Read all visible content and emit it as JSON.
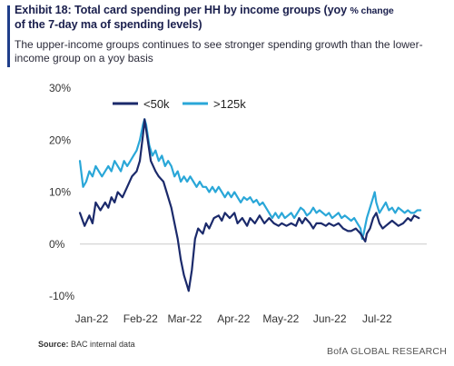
{
  "header": {
    "title_main": "Exhibit 18: Total card spending per HH by income groups (yoy ",
    "title_small": "% change",
    "title_line2": "of the 7-day  ma of spending levels)",
    "subtitle": "The upper-income groups continues to see stronger spending growth than the lower-income group on a yoy basis"
  },
  "footer": {
    "source_label": "Source:",
    "source_text": "BAC internal data",
    "brand": "BofA GLOBAL RESEARCH"
  },
  "colors": {
    "low_income": "#1b2a6b",
    "high_income": "#2aa7d8",
    "zero_line": "#c9c9c9"
  },
  "chart_data": {
    "type": "line",
    "title": "Exhibit 18: Total card spending per HH by income groups (yoy % change of the 7-day  ma of spending levels)",
    "xlabel": "",
    "ylabel": "",
    "ylim": [
      -10,
      30
    ],
    "yticks": [
      {
        "value": -10,
        "label": "-10%"
      },
      {
        "value": 0,
        "label": "0%"
      },
      {
        "value": 10,
        "label": "10%"
      },
      {
        "value": 20,
        "label": "20%"
      },
      {
        "value": 30,
        "label": "30%"
      }
    ],
    "xlim": [
      0,
      220
    ],
    "xticks": [
      {
        "value": 0,
        "label": "Jan-22"
      },
      {
        "value": 31,
        "label": "Feb-22"
      },
      {
        "value": 59,
        "label": "Mar-22"
      },
      {
        "value": 90,
        "label": "Apr-22"
      },
      {
        "value": 120,
        "label": "May-22"
      },
      {
        "value": 151,
        "label": "Jun-22"
      },
      {
        "value": 181,
        "label": "Jul-22"
      }
    ],
    "grid": false,
    "legend_position": "top-left",
    "series": [
      {
        "name": "<50k",
        "color": "#1b2a6b",
        "points": [
          [
            0,
            6
          ],
          [
            3,
            3.5
          ],
          [
            6,
            5.5
          ],
          [
            8,
            4
          ],
          [
            10,
            8
          ],
          [
            13,
            6.5
          ],
          [
            16,
            8
          ],
          [
            18,
            7
          ],
          [
            20,
            9
          ],
          [
            22,
            8
          ],
          [
            24,
            10
          ],
          [
            27,
            9
          ],
          [
            30,
            11
          ],
          [
            33,
            13
          ],
          [
            36,
            14
          ],
          [
            38,
            16
          ],
          [
            40,
            21
          ],
          [
            41,
            24
          ],
          [
            43,
            20
          ],
          [
            45,
            16
          ],
          [
            48,
            14
          ],
          [
            50,
            13
          ],
          [
            53,
            12
          ],
          [
            55,
            10
          ],
          [
            58,
            7
          ],
          [
            60,
            4
          ],
          [
            62,
            1
          ],
          [
            64,
            -3
          ],
          [
            66,
            -6
          ],
          [
            68,
            -8
          ],
          [
            69,
            -9
          ],
          [
            71,
            -5
          ],
          [
            73,
            1
          ],
          [
            75,
            3
          ],
          [
            78,
            2
          ],
          [
            80,
            4
          ],
          [
            82,
            3
          ],
          [
            85,
            5
          ],
          [
            88,
            5.5
          ],
          [
            90,
            4.5
          ],
          [
            92,
            6
          ],
          [
            95,
            5
          ],
          [
            98,
            6
          ],
          [
            100,
            4
          ],
          [
            103,
            5
          ],
          [
            106,
            3.5
          ],
          [
            108,
            5
          ],
          [
            111,
            4
          ],
          [
            114,
            5.5
          ],
          [
            117,
            4
          ],
          [
            120,
            5
          ],
          [
            123,
            4
          ],
          [
            126,
            3.5
          ],
          [
            128,
            4
          ],
          [
            131,
            3.5
          ],
          [
            134,
            4
          ],
          [
            137,
            3.5
          ],
          [
            139,
            5
          ],
          [
            141,
            4
          ],
          [
            143,
            5
          ],
          [
            146,
            4
          ],
          [
            148,
            3
          ],
          [
            150,
            4
          ],
          [
            153,
            4
          ],
          [
            156,
            3.5
          ],
          [
            158,
            4
          ],
          [
            161,
            3.5
          ],
          [
            164,
            4
          ],
          [
            167,
            3
          ],
          [
            170,
            2.5
          ],
          [
            172,
            2.5
          ],
          [
            175,
            3
          ],
          [
            178,
            2
          ],
          [
            180,
            1
          ],
          [
            181,
            0.5
          ],
          [
            182,
            2
          ],
          [
            184,
            3
          ],
          [
            186,
            5
          ],
          [
            188,
            6
          ],
          [
            190,
            4
          ],
          [
            192,
            3
          ],
          [
            194,
            3.5
          ],
          [
            196,
            4
          ],
          [
            198,
            4.5
          ],
          [
            200,
            4
          ],
          [
            202,
            3.5
          ],
          [
            205,
            4
          ],
          [
            208,
            5
          ],
          [
            210,
            4.5
          ],
          [
            212,
            5.5
          ],
          [
            215,
            5
          ]
        ]
      },
      {
        "name": ">125k",
        "color": "#2aa7d8",
        "points": [
          [
            0,
            16
          ],
          [
            2,
            11
          ],
          [
            4,
            12
          ],
          [
            6,
            14
          ],
          [
            8,
            13
          ],
          [
            10,
            15
          ],
          [
            12,
            14
          ],
          [
            14,
            13
          ],
          [
            16,
            14
          ],
          [
            18,
            15
          ],
          [
            20,
            14
          ],
          [
            22,
            16
          ],
          [
            24,
            15
          ],
          [
            26,
            14
          ],
          [
            28,
            16
          ],
          [
            30,
            15
          ],
          [
            32,
            16
          ],
          [
            34,
            17
          ],
          [
            36,
            18
          ],
          [
            38,
            20
          ],
          [
            40,
            23
          ],
          [
            41,
            24
          ],
          [
            42,
            23
          ],
          [
            44,
            19
          ],
          [
            46,
            17
          ],
          [
            48,
            18
          ],
          [
            50,
            16
          ],
          [
            52,
            17
          ],
          [
            54,
            15
          ],
          [
            56,
            16
          ],
          [
            58,
            15
          ],
          [
            60,
            13
          ],
          [
            62,
            14
          ],
          [
            64,
            12
          ],
          [
            66,
            13
          ],
          [
            68,
            12
          ],
          [
            70,
            13
          ],
          [
            72,
            12
          ],
          [
            74,
            11
          ],
          [
            76,
            12
          ],
          [
            78,
            11
          ],
          [
            80,
            11
          ],
          [
            82,
            10
          ],
          [
            84,
            11
          ],
          [
            86,
            10
          ],
          [
            88,
            11
          ],
          [
            90,
            10
          ],
          [
            92,
            9
          ],
          [
            94,
            10
          ],
          [
            96,
            9
          ],
          [
            98,
            10
          ],
          [
            100,
            9
          ],
          [
            102,
            8
          ],
          [
            104,
            9
          ],
          [
            106,
            8.5
          ],
          [
            108,
            9
          ],
          [
            110,
            8
          ],
          [
            112,
            8.5
          ],
          [
            114,
            7.5
          ],
          [
            116,
            8
          ],
          [
            118,
            7
          ],
          [
            120,
            6
          ],
          [
            122,
            5
          ],
          [
            124,
            6
          ],
          [
            126,
            5
          ],
          [
            128,
            6
          ],
          [
            130,
            5
          ],
          [
            132,
            5.5
          ],
          [
            134,
            6
          ],
          [
            136,
            5
          ],
          [
            138,
            6
          ],
          [
            140,
            7
          ],
          [
            142,
            6.5
          ],
          [
            144,
            5.5
          ],
          [
            146,
            6
          ],
          [
            148,
            7
          ],
          [
            150,
            6
          ],
          [
            152,
            6.5
          ],
          [
            154,
            6
          ],
          [
            156,
            5.5
          ],
          [
            158,
            6
          ],
          [
            160,
            5
          ],
          [
            162,
            5.5
          ],
          [
            164,
            6
          ],
          [
            166,
            5
          ],
          [
            168,
            5.5
          ],
          [
            170,
            5
          ],
          [
            172,
            4.5
          ],
          [
            174,
            5
          ],
          [
            176,
            4
          ],
          [
            178,
            3
          ],
          [
            179,
            1
          ],
          [
            180,
            2
          ],
          [
            182,
            5
          ],
          [
            184,
            7
          ],
          [
            186,
            9
          ],
          [
            187,
            10
          ],
          [
            188,
            8
          ],
          [
            190,
            6
          ],
          [
            192,
            7
          ],
          [
            194,
            8
          ],
          [
            196,
            6.5
          ],
          [
            198,
            7
          ],
          [
            200,
            6
          ],
          [
            202,
            7
          ],
          [
            204,
            6.5
          ],
          [
            206,
            6
          ],
          [
            208,
            6.5
          ],
          [
            210,
            6
          ],
          [
            212,
            6
          ],
          [
            214,
            6.5
          ],
          [
            216,
            6.5
          ]
        ]
      }
    ]
  }
}
